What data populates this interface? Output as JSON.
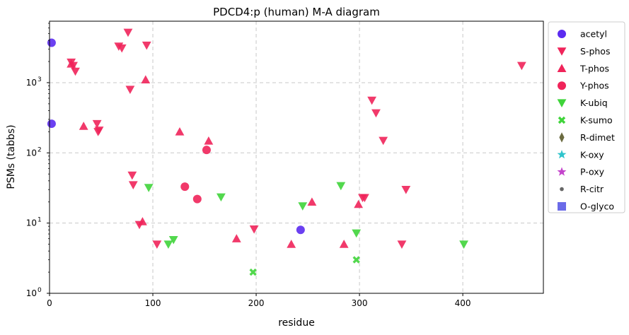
{
  "chart_data": {
    "type": "scatter",
    "title": "PDCD4:p (human) M-A diagram",
    "xlabel": "residue",
    "ylabel": "PSMs (tabbs)",
    "xlim": [
      0,
      478
    ],
    "ylim": [
      1,
      7500
    ],
    "yscale": "log",
    "grid": true,
    "legend_position": "outside-right",
    "x_ticks": [
      {
        "value": 0,
        "label": "0"
      },
      {
        "value": 100,
        "label": "100"
      },
      {
        "value": 200,
        "label": "200"
      },
      {
        "value": 300,
        "label": "300"
      },
      {
        "value": 400,
        "label": "400"
      }
    ],
    "y_ticks": [
      {
        "value": 1,
        "base": "10",
        "exp": "0"
      },
      {
        "value": 10,
        "base": "10",
        "exp": "1"
      },
      {
        "value": 100,
        "base": "10",
        "exp": "2"
      },
      {
        "value": 1000,
        "base": "10",
        "exp": "3"
      }
    ],
    "series": [
      {
        "name": "acetyl",
        "marker": "circle",
        "color": "#5b2bf0",
        "points": [
          [
            2,
            3700
          ],
          [
            2,
            260
          ],
          [
            243,
            8
          ]
        ]
      },
      {
        "name": "S-phos",
        "marker": "triangle-down",
        "color": "#f0245a",
        "points": [
          [
            76,
            5200
          ],
          [
            67,
            3300
          ],
          [
            70,
            3100
          ],
          [
            94,
            3400
          ],
          [
            21,
            1950
          ],
          [
            23,
            1750
          ],
          [
            25,
            1450
          ],
          [
            78,
            800
          ],
          [
            46,
            260
          ],
          [
            48,
            210
          ],
          [
            47,
            200
          ],
          [
            80,
            48
          ],
          [
            81,
            35
          ],
          [
            87,
            9.5
          ],
          [
            104,
            5
          ],
          [
            198,
            8.2
          ],
          [
            312,
            560
          ],
          [
            316,
            370
          ],
          [
            323,
            150
          ],
          [
            303,
            23
          ],
          [
            305,
            23
          ],
          [
            345,
            30
          ],
          [
            341,
            5
          ],
          [
            457,
            1750
          ]
        ]
      },
      {
        "name": "T-phos",
        "marker": "triangle-up",
        "color": "#f0245a",
        "points": [
          [
            21,
            1850
          ],
          [
            93,
            1100
          ],
          [
            33,
            240
          ],
          [
            126,
            200
          ],
          [
            154,
            148
          ],
          [
            90,
            10.5
          ],
          [
            181,
            6
          ],
          [
            234,
            5
          ],
          [
            254,
            20
          ],
          [
            285,
            5
          ],
          [
            299,
            18.5
          ]
        ]
      },
      {
        "name": "Y-phos",
        "marker": "circle",
        "color": "#f0245a",
        "points": [
          [
            152,
            110
          ],
          [
            131,
            33
          ],
          [
            143,
            22
          ]
        ]
      },
      {
        "name": "K-ubiq",
        "marker": "triangle-down",
        "color": "#3fd43a",
        "points": [
          [
            96,
            32
          ],
          [
            166,
            23.5
          ],
          [
            115,
            5
          ],
          [
            120,
            5.8
          ],
          [
            245,
            17.5
          ],
          [
            282,
            34
          ],
          [
            297,
            7.2
          ],
          [
            401,
            5
          ]
        ]
      },
      {
        "name": "K-sumo",
        "marker": "x-thick",
        "color": "#3fd43a",
        "points": [
          [
            197,
            2
          ],
          [
            297,
            3
          ]
        ]
      },
      {
        "name": "R-dimet",
        "marker": "diamond-thin",
        "color": "#6b6b40",
        "points": []
      },
      {
        "name": "K-oxy",
        "marker": "star",
        "color": "#2ec4cc",
        "points": []
      },
      {
        "name": "P-oxy",
        "marker": "star",
        "color": "#c444cc",
        "points": []
      },
      {
        "name": "R-citr",
        "marker": "dot",
        "color": "#666666",
        "points": []
      },
      {
        "name": "O-glyco",
        "marker": "square",
        "color": "#6b6be8",
        "points": []
      }
    ]
  }
}
